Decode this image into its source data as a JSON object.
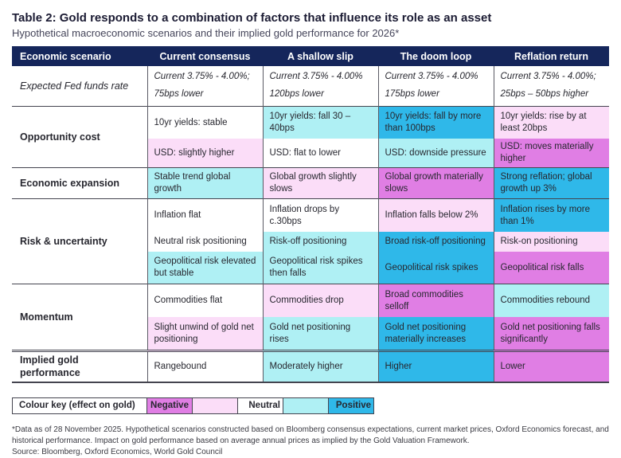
{
  "title": "Table 2: Gold responds to a combination of factors that influence its role as an asset",
  "subtitle": "Hypothetical macroeconomic scenarios and their implied gold performance for 2026*",
  "colors": {
    "header_navy": "#15265b",
    "negative_strong": "#e07ee4",
    "negative_light": "#fbddf8",
    "neutral": "#ffffff",
    "positive_light": "#aff0f4",
    "positive_strong": "#2fb8e9"
  },
  "table": {
    "headers": [
      "Economic scenario",
      "Current consensus",
      "A shallow slip",
      "The doom loop",
      "Reflation return"
    ],
    "fed": {
      "label": "Expected Fed funds rate",
      "cells": [
        "Current 3.75% - 4.00%;\n75bps lower",
        "Current 3.75% - 4.00%\n120bps lower",
        "Current 3.75% - 4.00%\n175bps lower",
        "Current 3.75% - 4.00%;\n25bps – 50bps higher"
      ]
    },
    "opportunity": {
      "label": "Opportunity cost",
      "yields": [
        "10yr yields: stable",
        "10yr yields: fall 30 – 40bps",
        "10yr yields: fall by more than 100bps",
        "10yr yields: rise by at least 20bps"
      ],
      "usd": [
        "USD: slightly higher",
        "USD: flat to lower",
        "USD: downside pressure",
        "USD: moves materially higher"
      ]
    },
    "expansion": {
      "label": "Economic expansion",
      "cells": [
        "Stable trend global growth",
        "Global growth slightly slows",
        "Global growth materially slows",
        "Strong reflation; global growth up 3%"
      ]
    },
    "risk": {
      "label": "Risk & uncertainty",
      "inflation": [
        "Inflation flat",
        "Inflation drops by c.30bps",
        "Inflation falls below 2%",
        "Inflation rises by more than 1%"
      ],
      "positioning": [
        "Neutral risk positioning",
        "Risk-off positioning",
        "Broad risk-off positioning",
        "Risk-on positioning"
      ],
      "geopolitical": [
        "Geopolitical risk elevated but stable",
        "Geopolitical risk spikes then falls",
        "Geopolitical risk spikes",
        "Geopolitical risk falls"
      ]
    },
    "momentum": {
      "label": "Momentum",
      "commodities": [
        "Commodities flat",
        "Commodities drop",
        "Broad commodities selloff",
        "Commodities rebound"
      ],
      "gold_positioning": [
        "Slight unwind of gold net positioning",
        "Gold net positioning rises",
        "Gold net positioning materially increases",
        "Gold net positioning falls significantly"
      ]
    },
    "implied": {
      "label": "Implied gold performance",
      "cells": [
        "Rangebound",
        "Moderately higher",
        "Higher",
        "Lower"
      ]
    }
  },
  "legend": {
    "label": "Colour key (effect on gold)",
    "negative": "Negative",
    "neutral": "Neutral",
    "positive": "Positive"
  },
  "footnote": {
    "line1": "*Data as of 28 November 2025. Hypothetical scenarios constructed based on Bloomberg consensus expectations, current market prices, Oxford Economics forecast, and historical performance. Impact on gold performance based on average annual prices as implied by the Gold Valuation Framework.",
    "source": "Source: Bloomberg, Oxford Economics, World Gold Council"
  }
}
